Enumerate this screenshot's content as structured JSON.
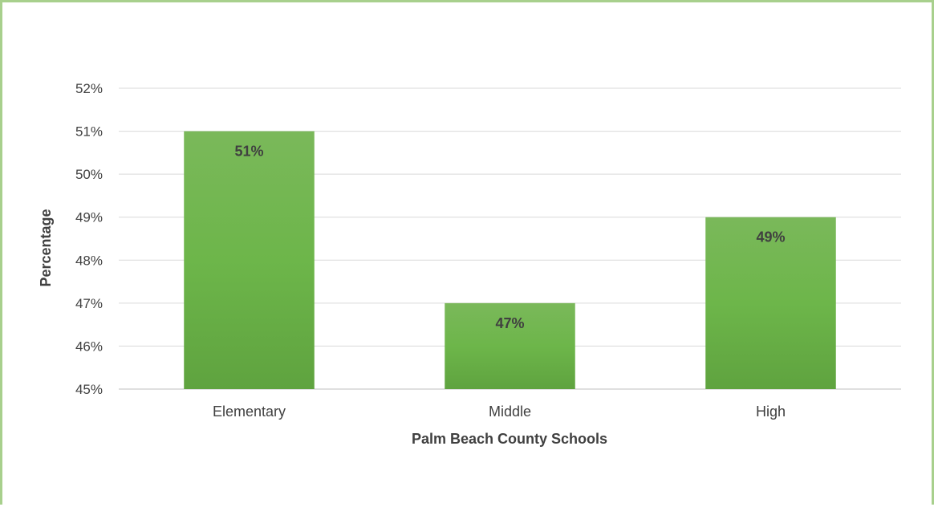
{
  "chart_data": {
    "type": "bar",
    "categories": [
      "Elementary",
      "Middle",
      "High"
    ],
    "values": [
      51,
      47,
      49
    ],
    "data_labels": [
      "51%",
      "47%",
      "49%"
    ],
    "title": "",
    "xlabel": "Palm Beach County Schools",
    "ylabel": "Percentage",
    "ylim": [
      45,
      52
    ],
    "yticks": [
      45,
      46,
      47,
      48,
      49,
      50,
      51,
      52
    ],
    "ytick_labels": [
      "45%",
      "46%",
      "47%",
      "48%",
      "49%",
      "50%",
      "51%",
      "52%"
    ],
    "grid": true,
    "legend": "none",
    "colors": {
      "bar_top": "#7ab85a",
      "bar_bottom": "#5fa33f",
      "frame": "#a8d08d"
    }
  }
}
